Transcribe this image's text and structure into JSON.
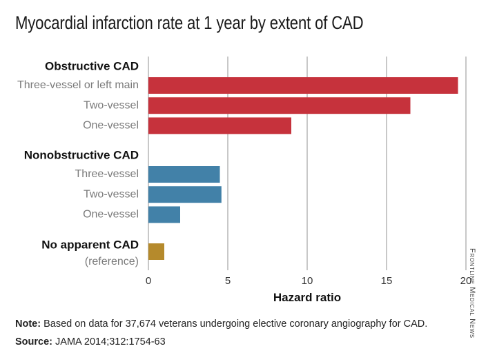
{
  "title": "Myocardial infarction rate at 1 year by extent of CAD",
  "note_label": "Note:",
  "note_text": "Based on data for 37,674 veterans undergoing elective coronary angiography for CAD.",
  "source_label": "Source:",
  "source_text": "JAMA 2014;312:1754-63",
  "credit": "Frontline Medical News",
  "colors": {
    "obstructive": "#c6323c",
    "nonobstructive": "#4281a8",
    "reference": "#b58a2c",
    "grid": "#c8c8c8",
    "category_text": "#7a7a7a",
    "group_text": "#111111"
  },
  "chart_data": {
    "type": "bar",
    "orientation": "horizontal",
    "title": "Myocardial infarction rate at 1 year by extent of CAD",
    "xlabel": "Hazard ratio",
    "xlim": [
      0,
      20
    ],
    "xticks": [
      0,
      5,
      10,
      15,
      20
    ],
    "grid": "vertical",
    "groups": [
      {
        "name": "Obstructive CAD",
        "color": "#c6323c",
        "bars": [
          {
            "label": "Three-vessel or left main",
            "value": 19.5
          },
          {
            "label": "Two-vessel",
            "value": 16.5
          },
          {
            "label": "One-vessel",
            "value": 9.0
          }
        ]
      },
      {
        "name": "Nonobstructive CAD",
        "color": "#4281a8",
        "bars": [
          {
            "label": "Three-vessel",
            "value": 4.5
          },
          {
            "label": "Two-vessel",
            "value": 4.6
          },
          {
            "label": "One-vessel",
            "value": 2.0
          }
        ]
      },
      {
        "name": "No apparent CAD",
        "color": "#b58a2c",
        "bars": [
          {
            "label": "(reference)",
            "value": 1.0
          }
        ]
      }
    ]
  }
}
